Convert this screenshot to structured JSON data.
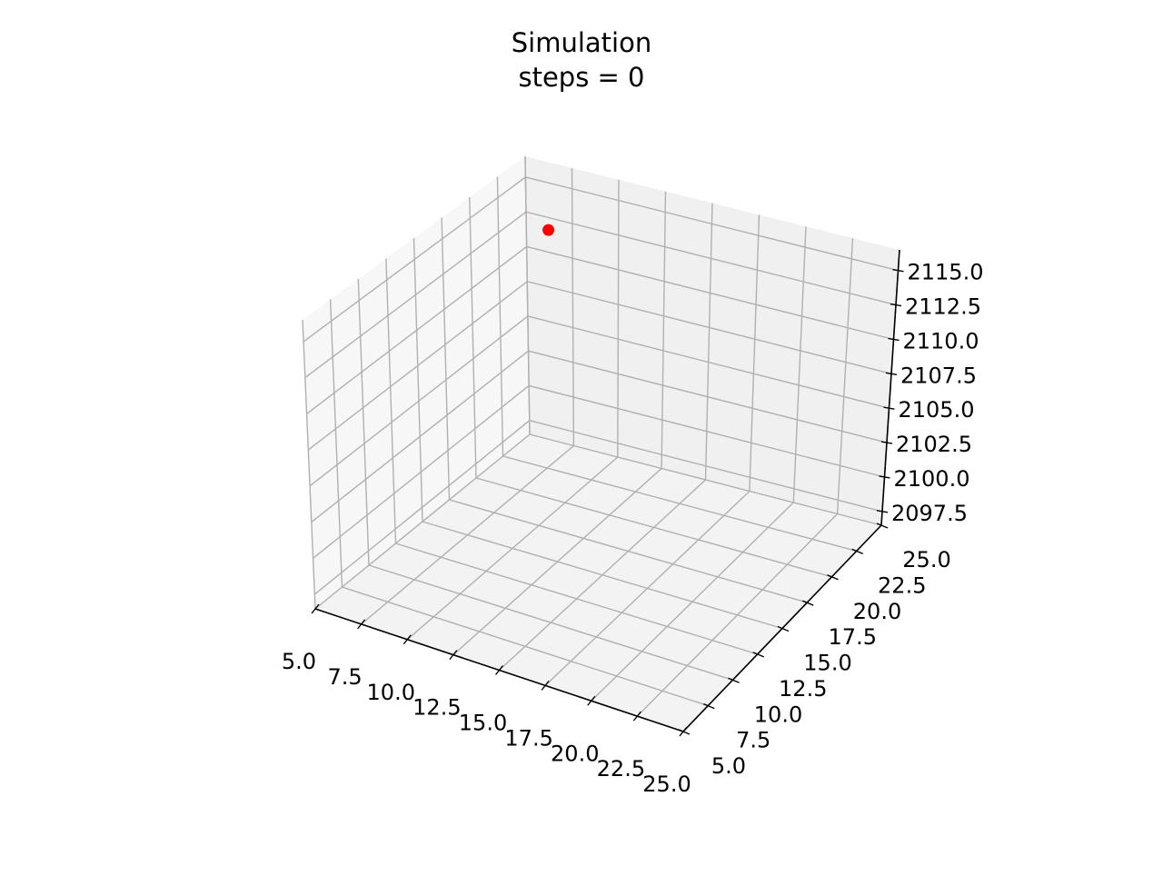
{
  "chart_data": {
    "type": "scatter",
    "title": "Simulation",
    "subtitle": "steps = 0",
    "projection": "3d",
    "xlabel": "",
    "ylabel": "",
    "zlabel": "",
    "xlim": [
      5.0,
      25.0
    ],
    "ylim": [
      5.0,
      25.0
    ],
    "zlim": [
      2096.5,
      2116.5
    ],
    "x_ticks": [
      "5.0",
      "7.5",
      "10.0",
      "12.5",
      "15.0",
      "17.5",
      "20.0",
      "22.5",
      "25.0"
    ],
    "y_ticks": [
      "5.0",
      "7.5",
      "10.0",
      "12.5",
      "15.0",
      "17.5",
      "20.0",
      "22.5",
      "25.0"
    ],
    "z_ticks": [
      "2097.5",
      "2100.0",
      "2102.5",
      "2105.0",
      "2107.5",
      "2110.0",
      "2112.5",
      "2115.0"
    ],
    "grid": true,
    "series": [
      {
        "points": [
          {
            "x": 6.5,
            "y": 24.5,
            "z": 2112.0
          }
        ],
        "color": "#ff0000"
      }
    ]
  }
}
